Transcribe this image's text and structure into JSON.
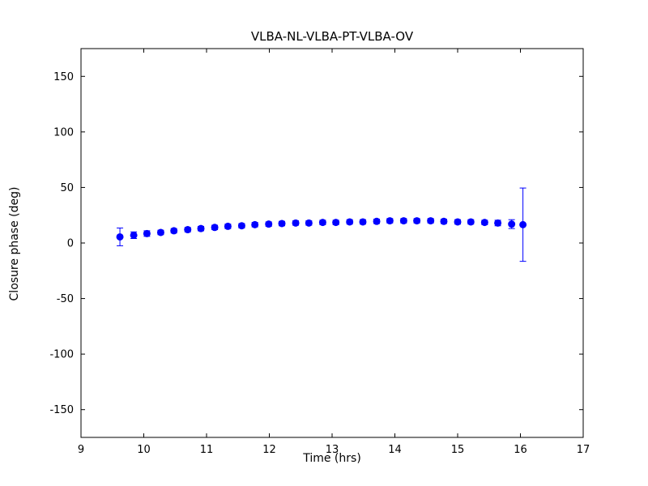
{
  "chart_data": {
    "type": "scatter",
    "title": "VLBA-NL-VLBA-PT-VLBA-OV",
    "xlabel": "Time (hrs)",
    "ylabel": "Closure phase (deg)",
    "xlim": [
      9,
      17
    ],
    "ylim": [
      -175,
      175
    ],
    "xticks": [
      9,
      10,
      11,
      12,
      13,
      14,
      15,
      16,
      17
    ],
    "yticks": [
      -150,
      -100,
      -50,
      0,
      50,
      100,
      150
    ],
    "grid": false,
    "legend": "none",
    "marker": {
      "shape": "circle",
      "color": "#0000ff",
      "radius": 4
    },
    "axis_color": "#000000",
    "series": [
      {
        "name": "closure-phase",
        "x": [
          9.62,
          9.84,
          10.05,
          10.27,
          10.48,
          10.7,
          10.91,
          11.13,
          11.34,
          11.56,
          11.77,
          11.99,
          12.2,
          12.42,
          12.63,
          12.85,
          13.06,
          13.28,
          13.49,
          13.71,
          13.92,
          14.14,
          14.35,
          14.57,
          14.78,
          15.0,
          15.21,
          15.43,
          15.64,
          15.86,
          16.04
        ],
        "y": [
          5.5,
          7,
          8.5,
          9.5,
          11,
          12,
          13,
          14,
          15,
          15.5,
          16.5,
          17,
          17.5,
          18,
          18,
          18.5,
          18.5,
          19,
          19,
          19.5,
          20,
          20,
          20,
          20,
          19.5,
          19,
          19,
          18.5,
          18,
          17,
          16.5
        ],
        "yerr": [
          8,
          3,
          2.5,
          2,
          2,
          2,
          2,
          2,
          2,
          2,
          2,
          2,
          2,
          2,
          2,
          2,
          2,
          2,
          2,
          2,
          2,
          2,
          2,
          2,
          2,
          2,
          2,
          2,
          2.5,
          4,
          33
        ]
      }
    ]
  }
}
